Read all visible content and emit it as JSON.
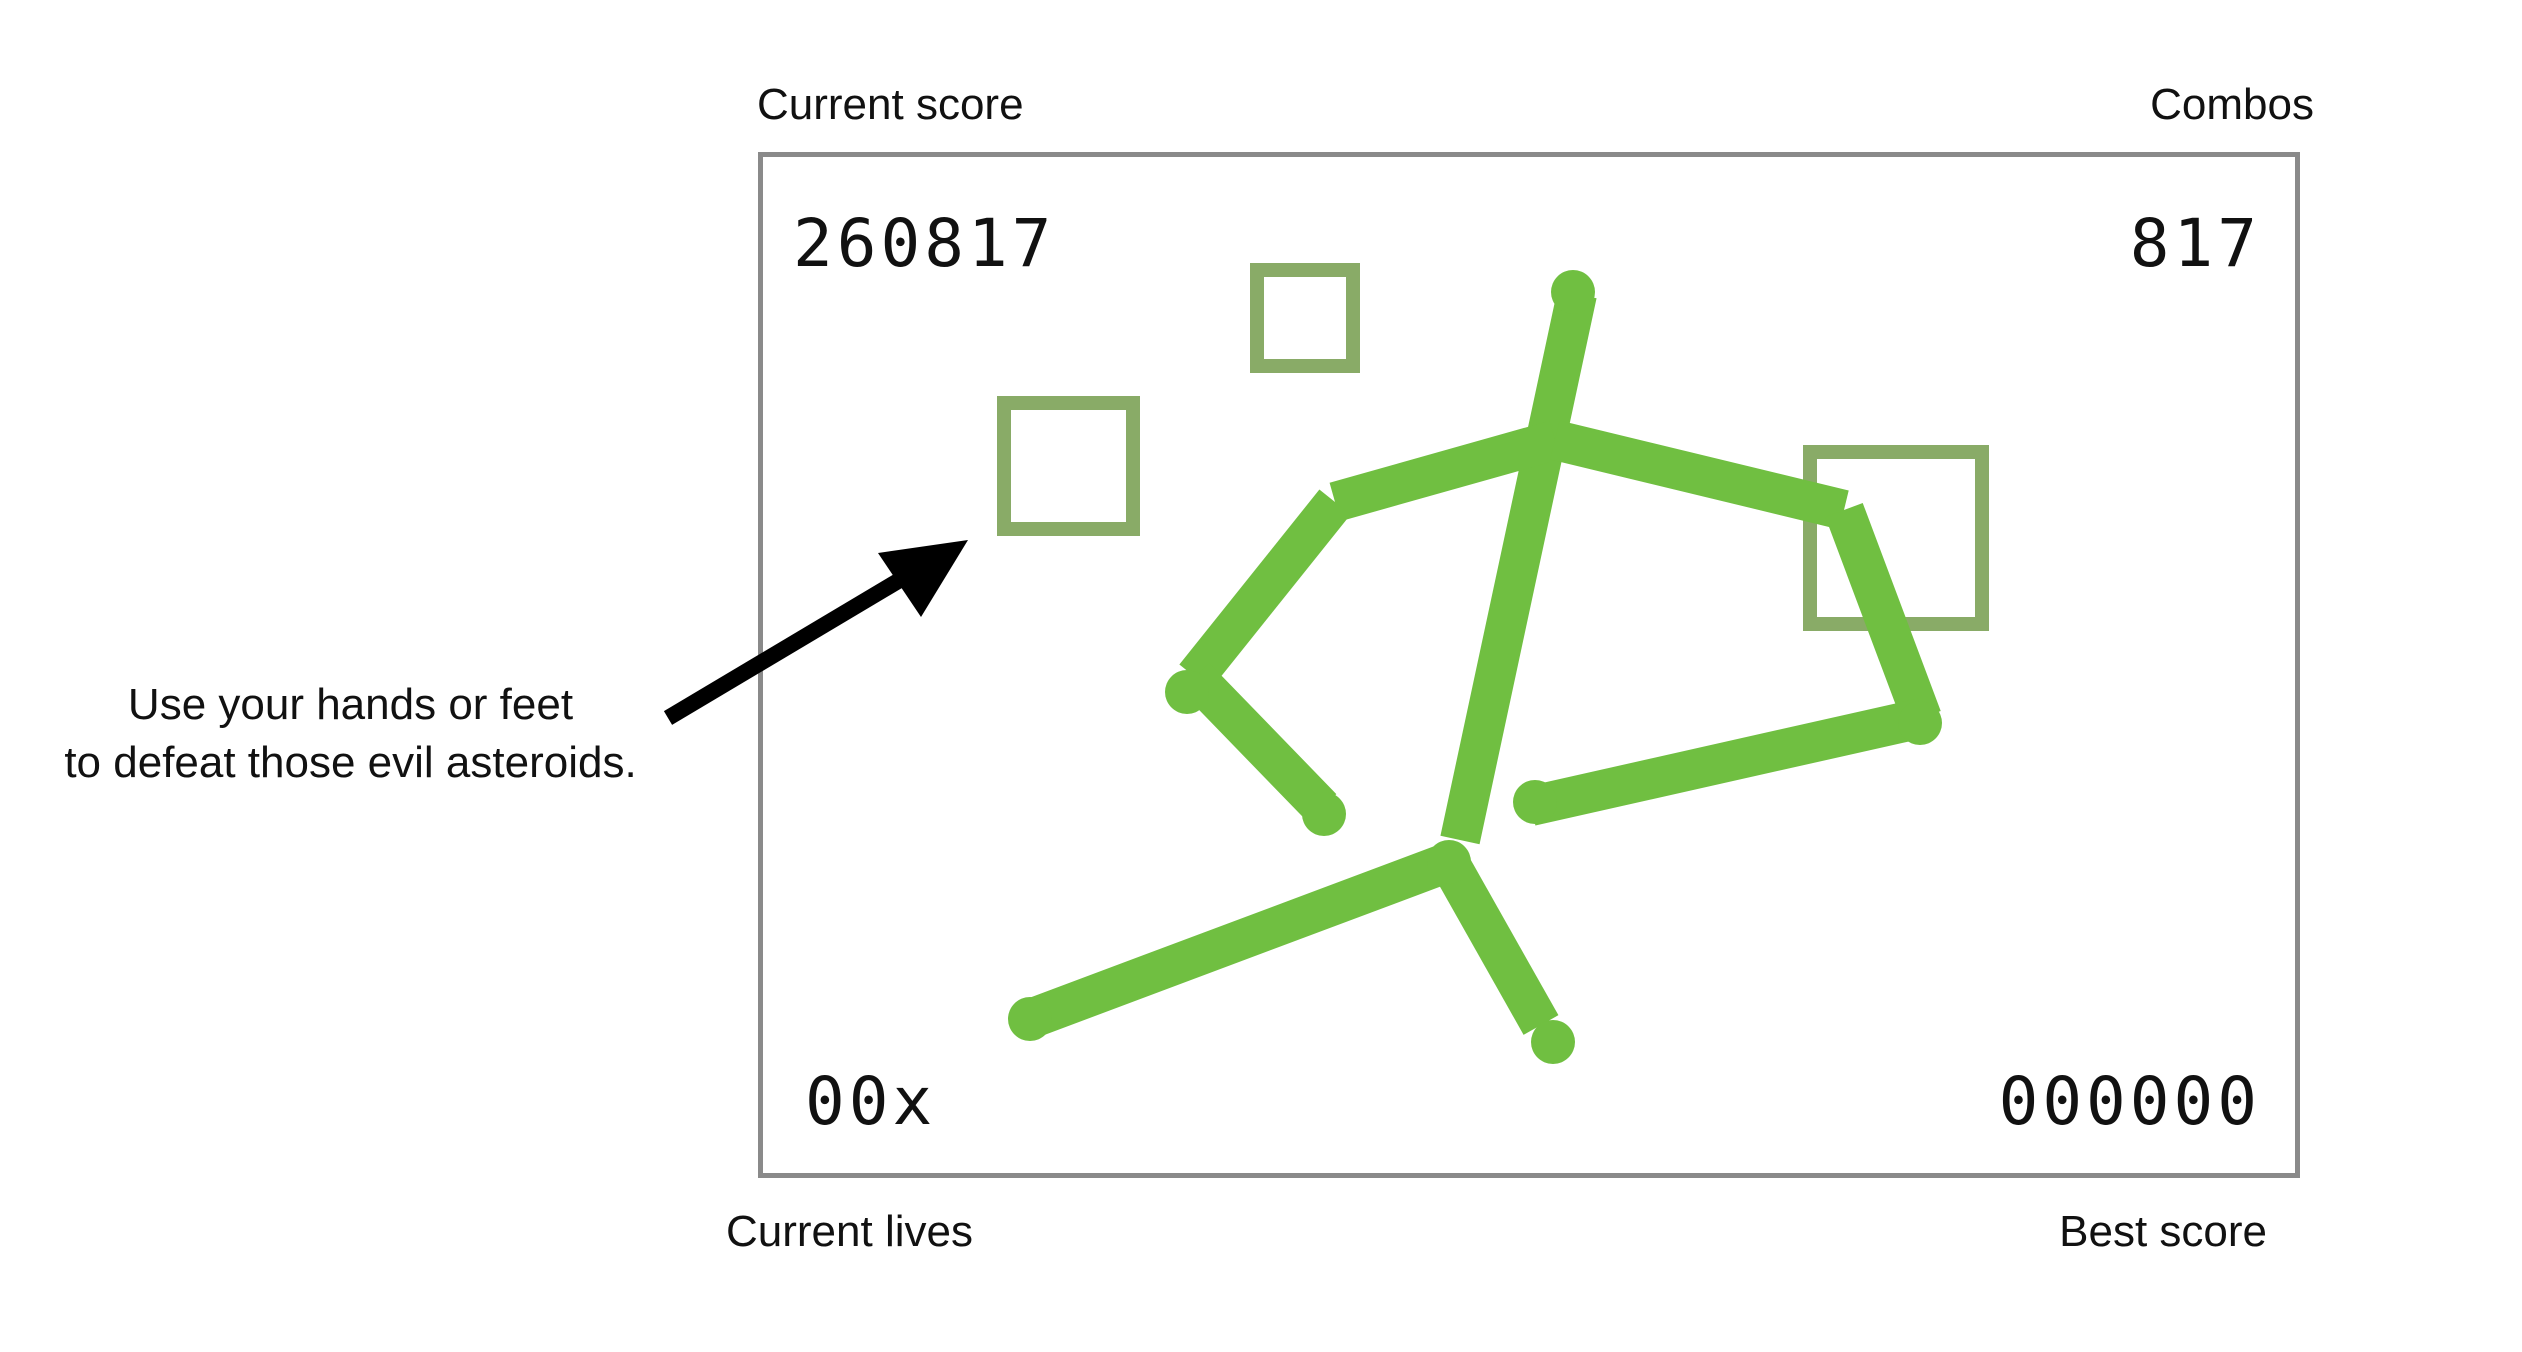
{
  "labels": {
    "current_score": "Current score",
    "combos": "Combos",
    "current_lives": "Current lives",
    "best_score": "Best score"
  },
  "instructions": {
    "line1": "Use your hands or feet",
    "line2": "to defeat those evil asteroids."
  },
  "hud": {
    "score": "260817",
    "combos": "817",
    "lives": "00x",
    "best_score": "000000"
  },
  "colors": {
    "skeleton": "#70bf41",
    "asteroid": "#89ab67",
    "frame_border": "#8a8a8a",
    "text": "#111111",
    "arrow": "#000000"
  },
  "icons": {
    "pointer_arrow": "arrow-icon",
    "asteroid": "square-outline"
  }
}
